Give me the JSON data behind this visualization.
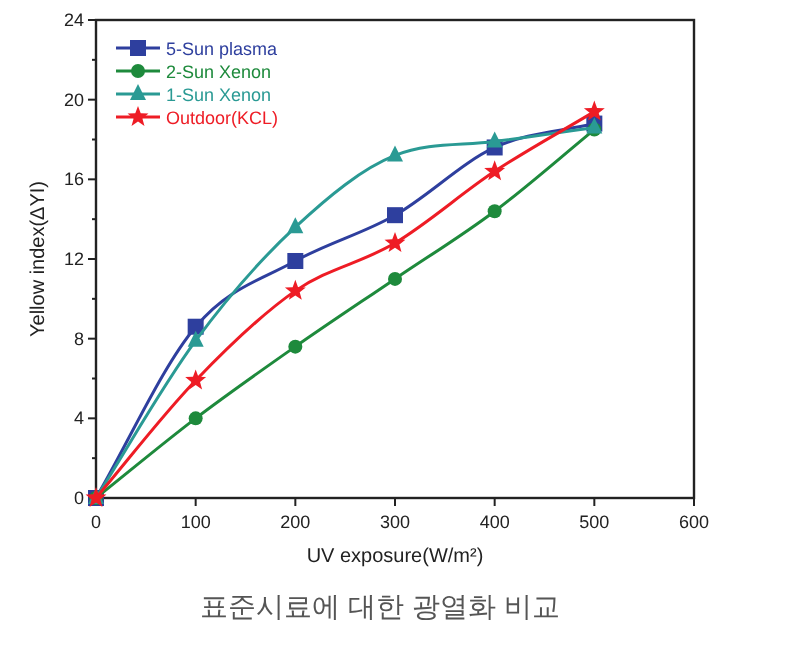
{
  "chart_data": {
    "type": "line",
    "xlabel": "UV exposure(W/m²)",
    "ylabel": "Yellow index(ΔYI)",
    "x": [
      0,
      100,
      200,
      300,
      400,
      500
    ],
    "series": [
      {
        "name": "5-Sun plasma",
        "color": "#2e3f9e",
        "marker": "square",
        "values": [
          0,
          8.6,
          11.9,
          14.2,
          17.6,
          18.8
        ]
      },
      {
        "name": "2-Sun Xenon",
        "color": "#1e8a3c",
        "marker": "circle",
        "values": [
          0,
          4.0,
          7.6,
          11.0,
          14.4,
          18.5
        ]
      },
      {
        "name": "1-Sun Xenon",
        "color": "#2a9a94",
        "marker": "triangle",
        "values": [
          0,
          7.9,
          13.6,
          17.2,
          17.9,
          18.6
        ]
      },
      {
        "name": "Outdoor(KCL)",
        "color": "#ee1c25",
        "marker": "star",
        "values": [
          0,
          5.9,
          10.4,
          12.8,
          16.4,
          19.4
        ]
      }
    ],
    "xlim": [
      0,
      600
    ],
    "xticks": [
      0,
      100,
      200,
      300,
      400,
      500,
      600
    ],
    "ylim": [
      0,
      24
    ],
    "yticks": [
      0,
      {
        "value": 2,
        "label": null
      },
      4,
      {
        "value": 6,
        "label": null
      },
      8,
      {
        "value": 10,
        "label": null
      },
      12,
      {
        "value": 14,
        "label": null
      },
      16,
      {
        "value": 18,
        "label": null
      },
      20,
      {
        "value": 22,
        "label": null
      },
      24
    ],
    "grid": false,
    "legend": "top left",
    "line_style": "solid",
    "annotations": [
      "표준시료에 대한 광열화 비교"
    ]
  }
}
